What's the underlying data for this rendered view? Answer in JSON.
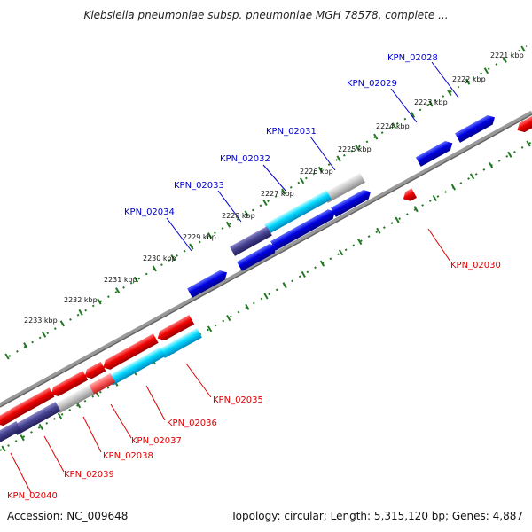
{
  "title": "Klebsiella pneumoniae subsp. pneumoniae MGH 78578, complete ...",
  "accession": "Accession: NC_009648",
  "topology": "Topology: circular; Length: 5,315,120 bp; Genes: 4,887",
  "colors": {
    "plus_strand": "#0000dd",
    "minus_strand": "#ee0000",
    "tick": "#227722",
    "backbone": "#888888",
    "plus_label": "#0000cc",
    "minus_label": "#dd0000"
  },
  "scale_labels": [
    "2221 kbp",
    "2222 kbp",
    "2223 kbp",
    "2224 kbp",
    "2225 kbp",
    "2226 kbp",
    "2227 kbp",
    "2228 kbp",
    "2229 kbp",
    "2230 kbp",
    "2231 kbp",
    "2232 kbp",
    "2233 kbp"
  ],
  "genes_plus": [
    "KPN_02028",
    "KPN_02029",
    "KPN_02031",
    "KPN_02032",
    "KPN_02033",
    "KPN_02034"
  ],
  "genes_minus": [
    "KPN_02030",
    "KPN_02035",
    "KPN_02036",
    "KPN_02037",
    "KPN_02038",
    "KPN_02039",
    "KPN_02040"
  ]
}
